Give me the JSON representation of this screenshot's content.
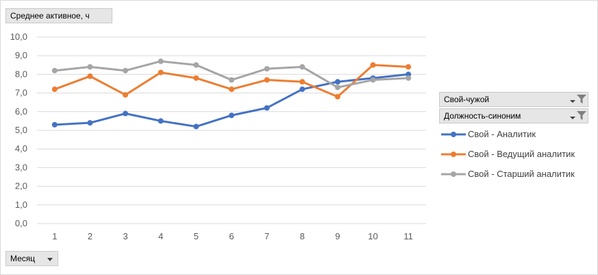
{
  "fields": {
    "value_field": "Среднее  активное,  ч",
    "filter1": "Свой-чужой",
    "filter2": "Должность-синоним",
    "axis_field": "Месяц"
  },
  "chart_data": {
    "type": "line",
    "x": [
      1,
      2,
      3,
      4,
      5,
      6,
      7,
      8,
      9,
      10,
      11
    ],
    "ylim": [
      0,
      10
    ],
    "yticks": [
      "0,0",
      "1,0",
      "2,0",
      "3,0",
      "4,0",
      "5,0",
      "6,0",
      "7,0",
      "8,0",
      "9,0",
      "10,0"
    ],
    "grid": true,
    "legend_position": "right",
    "series": [
      {
        "name": "Свой - Аналитик",
        "color": "#4472c4",
        "values": [
          5.3,
          5.4,
          5.9,
          5.5,
          5.2,
          5.8,
          6.2,
          7.2,
          7.6,
          7.8,
          8.0
        ]
      },
      {
        "name": "Свой - Ведущий аналитик",
        "color": "#ed7d31",
        "values": [
          7.2,
          7.9,
          6.9,
          8.1,
          7.8,
          7.2,
          7.7,
          7.6,
          6.8,
          8.5,
          8.4
        ]
      },
      {
        "name": "Свой - Старший аналитик",
        "color": "#a5a5a5",
        "values": [
          8.2,
          8.4,
          8.2,
          8.7,
          8.5,
          7.7,
          8.3,
          8.4,
          7.3,
          7.7,
          7.8
        ]
      }
    ]
  }
}
